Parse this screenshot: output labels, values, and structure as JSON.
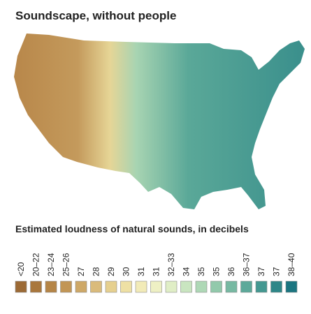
{
  "title": "Soundscape, without people",
  "legend": {
    "title": "Estimated loudness of natural sounds, in decibels",
    "items": [
      {
        "label": "<20",
        "color": "#9c6a35"
      },
      {
        "label": "20–22",
        "color": "#a9773c"
      },
      {
        "label": "23–24",
        "color": "#b58546"
      },
      {
        "label": "25–26",
        "color": "#c29656"
      },
      {
        "label": "27",
        "color": "#cea867"
      },
      {
        "label": "28",
        "color": "#dabb7c"
      },
      {
        "label": "29",
        "color": "#e6d08f"
      },
      {
        "label": "30",
        "color": "#eee0a4"
      },
      {
        "label": "31",
        "color": "#f2ebb8"
      },
      {
        "label": "31",
        "color": "#eef0c4"
      },
      {
        "label": "32–33",
        "color": "#e0eec6"
      },
      {
        "label": "34",
        "color": "#c9e5c0"
      },
      {
        "label": "35",
        "color": "#aed8b6"
      },
      {
        "label": "35",
        "color": "#92c9ab"
      },
      {
        "label": "36",
        "color": "#77b9a2"
      },
      {
        "label": "36–37",
        "color": "#5da99a"
      },
      {
        "label": "37",
        "color": "#449891"
      },
      {
        "label": "37",
        "color": "#2e8788"
      },
      {
        "label": "38–40",
        "color": "#1b7580"
      }
    ]
  }
}
